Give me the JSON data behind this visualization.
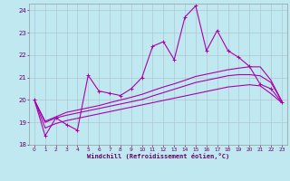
{
  "background_color": "#c0e8f0",
  "grid_color": "#b0c8d0",
  "line_color": "#aa00aa",
  "xlim": [
    -0.5,
    23.5
  ],
  "ylim": [
    18,
    24.3
  ],
  "xlabel": "Windchill (Refroidissement éolien,°C)",
  "yticks": [
    18,
    19,
    20,
    21,
    22,
    23,
    24
  ],
  "xticks": [
    0,
    1,
    2,
    3,
    4,
    5,
    6,
    7,
    8,
    9,
    10,
    11,
    12,
    13,
    14,
    15,
    16,
    17,
    18,
    19,
    20,
    21,
    22,
    23
  ],
  "series": [
    [
      20.0,
      18.4,
      19.2,
      18.9,
      18.65,
      21.1,
      20.4,
      20.3,
      20.2,
      20.5,
      21.0,
      22.4,
      22.6,
      21.8,
      23.7,
      24.2,
      22.2,
      23.1,
      22.2,
      21.9,
      21.5,
      20.7,
      20.5,
      19.9
    ],
    [
      20.0,
      19.05,
      19.25,
      19.45,
      19.55,
      19.65,
      19.75,
      19.88,
      20.0,
      20.12,
      20.25,
      20.42,
      20.58,
      20.72,
      20.88,
      21.05,
      21.15,
      21.25,
      21.35,
      21.42,
      21.48,
      21.48,
      20.88,
      19.95
    ],
    [
      20.0,
      19.0,
      19.2,
      19.32,
      19.42,
      19.52,
      19.62,
      19.72,
      19.82,
      19.92,
      20.02,
      20.18,
      20.33,
      20.48,
      20.63,
      20.78,
      20.88,
      20.98,
      21.08,
      21.13,
      21.13,
      21.08,
      20.78,
      19.95
    ],
    [
      20.0,
      18.75,
      18.95,
      19.08,
      19.18,
      19.28,
      19.38,
      19.48,
      19.58,
      19.68,
      19.78,
      19.88,
      19.98,
      20.08,
      20.18,
      20.28,
      20.38,
      20.48,
      20.58,
      20.63,
      20.68,
      20.63,
      20.28,
      19.88
    ]
  ]
}
